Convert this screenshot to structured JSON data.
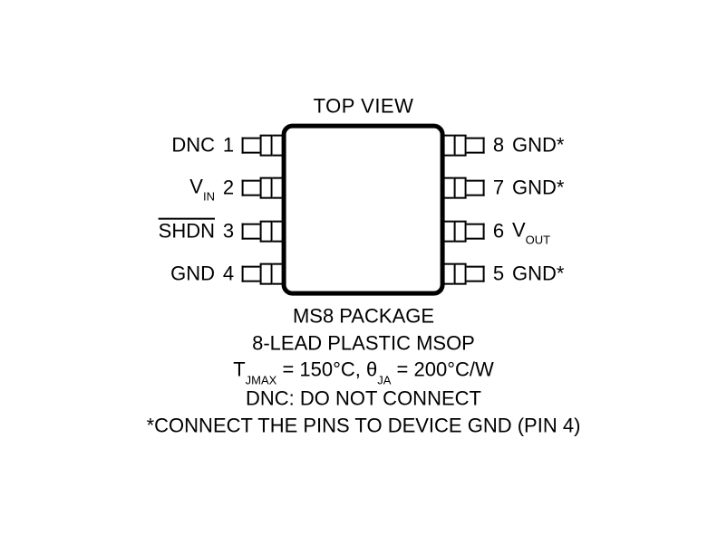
{
  "topLabel": "TOP VIEW",
  "leftPins": [
    {
      "name": "DNC",
      "num": "1",
      "sub": "",
      "overline": false
    },
    {
      "name": "V",
      "num": "2",
      "sub": "IN",
      "overline": false
    },
    {
      "name": "SHDN",
      "num": "3",
      "sub": "",
      "overline": true
    },
    {
      "name": "GND",
      "num": "4",
      "sub": "",
      "overline": false
    }
  ],
  "rightPins": [
    {
      "name": "GND*",
      "num": "8",
      "sub": "",
      "overline": false
    },
    {
      "name": "GND*",
      "num": "7",
      "sub": "",
      "overline": false
    },
    {
      "name": "V",
      "num": "6",
      "sub": "OUT",
      "overline": false
    },
    {
      "name": "GND*",
      "num": "5",
      "sub": "",
      "overline": false
    }
  ],
  "footer": {
    "line1": "MS8 PACKAGE",
    "line2": "8-LEAD PLASTIC MSOP",
    "thermal_prefix": "T",
    "thermal_sub1": "JMAX",
    "thermal_mid": " = 150°C, θ",
    "thermal_sub2": "JA",
    "thermal_suffix": " = 200°C/W",
    "line4": "DNC: DO NOT CONNECT",
    "line5": "*CONNECT THE PINS TO DEVICE GND (PIN 4)"
  },
  "colors": {
    "stroke": "#000000",
    "bg": "#ffffff"
  }
}
